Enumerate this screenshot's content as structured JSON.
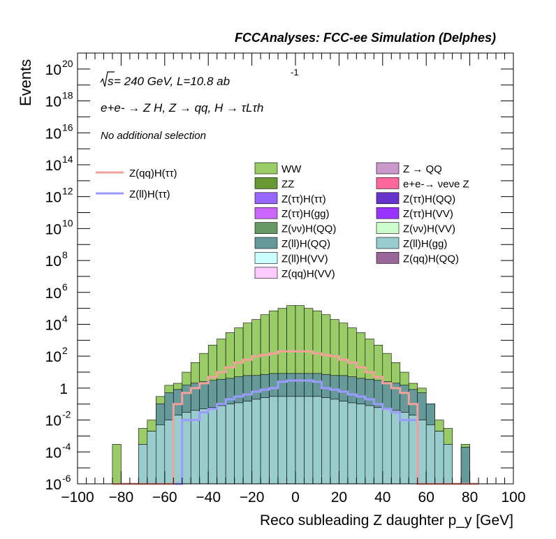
{
  "header": {
    "title": "FCCAnalyses: FCC-ee Simulation (Delphes)"
  },
  "annotations": {
    "energy_prefix": "s",
    "energy_text": " = 240 GeV, L=10.8 ab",
    "lumi_exp": "-1",
    "process_line": "e+e- → Z H, Z → qq, H → τLτh",
    "selection_text": "No additional selection"
  },
  "legend_lines": [
    {
      "label": "Z(qq)H(ττ)",
      "color": "#f4a09a"
    },
    {
      "label": "Z(ll)H(ττ)",
      "color": "#9b9bff"
    }
  ],
  "legend_boxes": [
    {
      "label": "WW",
      "color": "#99cc66"
    },
    {
      "label": "Z → QQ",
      "color": "#cc99cc"
    },
    {
      "label": "ZZ",
      "color": "#669933"
    },
    {
      "label": "e+e-→ νeνe Z",
      "color": "#ff6699"
    },
    {
      "label": "Z(ττ)H(ττ)",
      "color": "#9966ff"
    },
    {
      "label": "Z(ττ)H(QQ)",
      "color": "#6633cc"
    },
    {
      "label": "Z(ττ)H(gg)",
      "color": "#cc66ff"
    },
    {
      "label": "Z(ττ)H(VV)",
      "color": "#9933ff"
    },
    {
      "label": "Z(νν)H(QQ)",
      "color": "#669966"
    },
    {
      "label": "Z(νν)H(VV)",
      "color": "#ccffcc"
    },
    {
      "label": "Z(ll)H(QQ)",
      "color": "#669999"
    },
    {
      "label": "Z(ll)H(gg)",
      "color": "#99cccc"
    },
    {
      "label": "Z(ll)H(VV)",
      "color": "#ccffff"
    },
    {
      "label": "Z(qq)H(QQ)",
      "color": "#996699"
    },
    {
      "label": "Z(qq)H(VV)",
      "color": "#ffccff"
    }
  ],
  "chart_data": {
    "type": "bar",
    "xlabel": "Reco subleading Z daughter p_y [GeV]",
    "ylabel": "Events",
    "xlim": [
      -100,
      100
    ],
    "ylim": [
      1e-06,
      1e+21
    ],
    "yscale": "log",
    "x_ticks": [
      "−100",
      "−80",
      "−60",
      "−40",
      "−20",
      "0",
      "20",
      "40",
      "60",
      "80",
      "100"
    ],
    "y_ticks": [
      {
        "base": "10",
        "exp": "-6"
      },
      {
        "base": "10",
        "exp": "-4"
      },
      {
        "base": "10",
        "exp": "-2"
      },
      {
        "base": "1",
        "exp": ""
      },
      {
        "base": "10",
        "exp": "2"
      },
      {
        "base": "10",
        "exp": "4"
      },
      {
        "base": "10",
        "exp": "6"
      },
      {
        "base": "10",
        "exp": "8"
      },
      {
        "base": "10",
        "exp": "10"
      },
      {
        "base": "10",
        "exp": "12"
      },
      {
        "base": "10",
        "exp": "14"
      },
      {
        "base": "10",
        "exp": "16"
      },
      {
        "base": "10",
        "exp": "18"
      },
      {
        "base": "10",
        "exp": "20"
      }
    ],
    "bin_edges": [
      -84,
      -80,
      -76,
      -72,
      -68,
      -64,
      -60,
      -56,
      -52,
      -48,
      -44,
      -40,
      -36,
      -32,
      -28,
      -24,
      -20,
      -16,
      -12,
      -8,
      -4,
      0,
      4,
      8,
      12,
      16,
      20,
      24,
      28,
      32,
      36,
      40,
      44,
      48,
      52,
      56,
      60,
      64,
      68,
      72,
      76,
      80,
      84
    ],
    "stack_totals": [
      0.0003,
      1e-06,
      1e-06,
      0.003,
      0.01,
      0.3,
      1.5,
      2,
      10,
      40,
      150,
      500,
      1200,
      3000,
      6000,
      12000,
      20000,
      40000,
      70000,
      100000,
      150000,
      150000,
      100000,
      70000,
      40000,
      20000,
      12000,
      6000,
      3000,
      1200,
      500,
      150,
      40,
      10,
      2,
      1,
      0.08,
      0.01,
      0.003,
      1e-06,
      0.0003,
      1e-06
    ],
    "stack_top_color": "#99cc66",
    "layers": [
      {
        "name": "Z(ll)H(gg)",
        "color": "#99cccc",
        "values": [
          0,
          0,
          0,
          0.0003,
          0.002,
          0.005,
          0.01,
          0.02,
          0.03,
          0.04,
          0.05,
          0.06,
          0.08,
          0.1,
          0.12,
          0.15,
          0.2,
          0.25,
          0.3,
          0.3,
          0.3,
          0.3,
          0.3,
          0.3,
          0.25,
          0.2,
          0.15,
          0.12,
          0.1,
          0.08,
          0.06,
          0.05,
          0.04,
          0.03,
          0.02,
          0.01,
          0.005,
          0.002,
          0.0003,
          0,
          0,
          0
        ]
      },
      {
        "name": "Z(ll)H(QQ)",
        "color": "#669999",
        "values": [
          0,
          0,
          0,
          0,
          0,
          0.1,
          0.5,
          0.8,
          1.5,
          2,
          2.5,
          3,
          3.5,
          4,
          5,
          6,
          6,
          7,
          8,
          8,
          8,
          8,
          8,
          8,
          7,
          6,
          6,
          5,
          4,
          3.5,
          3,
          2.5,
          2,
          1.5,
          0.8,
          0.5,
          0.1,
          0,
          0,
          0,
          0.0002,
          0
        ]
      }
    ],
    "overlays": [
      {
        "name": "Z(ll)H(ττ)",
        "color": "#9b9bff",
        "values": [
          0,
          0,
          0,
          0,
          0,
          0,
          0,
          0,
          0.01,
          0.01,
          0.03,
          0.05,
          0.1,
          0.2,
          0.3,
          0.4,
          0.6,
          0.8,
          1.0,
          2.5,
          3.0,
          3.0,
          3.0,
          2.5,
          1.0,
          0.8,
          0.6,
          0.4,
          0.3,
          0.2,
          0.1,
          0.05,
          0.03,
          0.01,
          0.01,
          0,
          0,
          0,
          0,
          0,
          0,
          0
        ]
      },
      {
        "name": "Z(qq)H(ττ)",
        "color": "#f4a09a",
        "values": [
          0,
          0,
          0,
          0,
          0,
          0,
          0,
          0.1,
          0.5,
          1,
          2,
          5,
          10,
          20,
          40,
          60,
          100,
          120,
          150,
          200,
          200,
          200,
          200,
          150,
          120,
          100,
          60,
          40,
          20,
          10,
          5,
          2,
          1,
          0.5,
          0.1,
          0,
          0,
          0,
          0,
          0,
          0,
          0
        ]
      }
    ]
  }
}
